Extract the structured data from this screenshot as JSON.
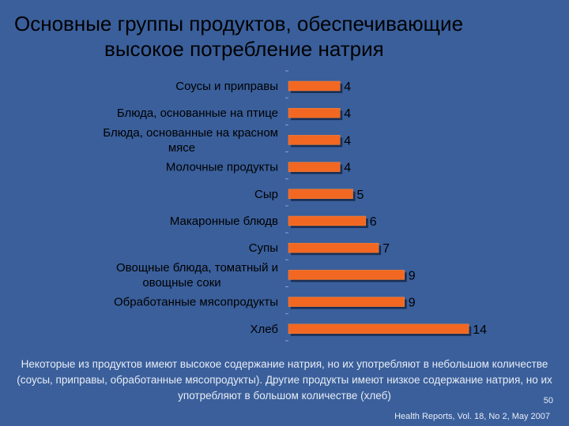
{
  "title": {
    "line1": "Основные группы продуктов, обеспечивающие",
    "line2": "высокое потребление натрия"
  },
  "chart_data": {
    "type": "bar",
    "orientation": "horizontal",
    "categories": [
      [
        "Соусы и приправы"
      ],
      [
        "Блюда, основанные на птице"
      ],
      [
        "Блюда, основанные на красном",
        "мясе"
      ],
      [
        "Молочные продукты"
      ],
      [
        "Сыр"
      ],
      [
        "Макаронные блюдв"
      ],
      [
        "Супы"
      ],
      [
        "Овощные блюда, томатный и",
        "овощные соки"
      ],
      [
        "Обработанные мясопродукты"
      ],
      [
        "Хлеб"
      ]
    ],
    "values": [
      4,
      4,
      4,
      4,
      5,
      6,
      7,
      9,
      9,
      14
    ],
    "data_labels": [
      "4",
      "4",
      "4",
      "4",
      "5",
      "6",
      "7",
      "9",
      "9",
      "14"
    ],
    "xlim": [
      0,
      14
    ],
    "bar_color": "#f26722"
  },
  "caption": "Некоторые из продуктов имеют высокое содержание натрия, но их употребляют в небольшом количестве (соусы, приправы, обработанные мясопродукты). Другие продукты имеют низкое содержание натрия, но их употребляют в большом количестве (хлеб)",
  "page_number": "50",
  "source": "Health Reports, Vol. 18, No 2, May 2007"
}
